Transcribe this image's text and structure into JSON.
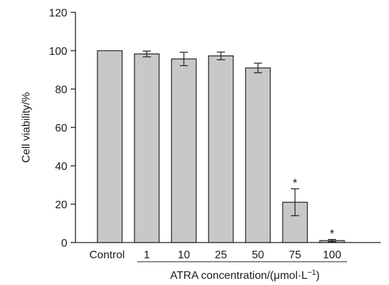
{
  "chart_data": {
    "type": "bar",
    "categories": [
      "Control",
      "1",
      "10",
      "25",
      "50",
      "75",
      "100"
    ],
    "values": [
      100,
      98.3,
      95.7,
      97.3,
      91,
      21,
      1
    ],
    "error": [
      0,
      1.5,
      3.5,
      2,
      2.5,
      7,
      0.6
    ],
    "significant": [
      false,
      false,
      false,
      false,
      false,
      true,
      true
    ],
    "significance_marker": "*",
    "ylabel": "Cell viability/%",
    "xlabel_prefix": "ATRA concentration/(μmol·L",
    "xlabel_sup": "−1",
    "xlabel_suffix": ")",
    "ylim": [
      0,
      120
    ],
    "yticks": [
      "0",
      "20",
      "40",
      "60",
      "80",
      "100",
      "120"
    ],
    "grid": false,
    "colors": {
      "bar_fill": "#c8c8c8",
      "bar_stroke": "#1a1a1a",
      "axis": "#1a1a1a"
    }
  }
}
